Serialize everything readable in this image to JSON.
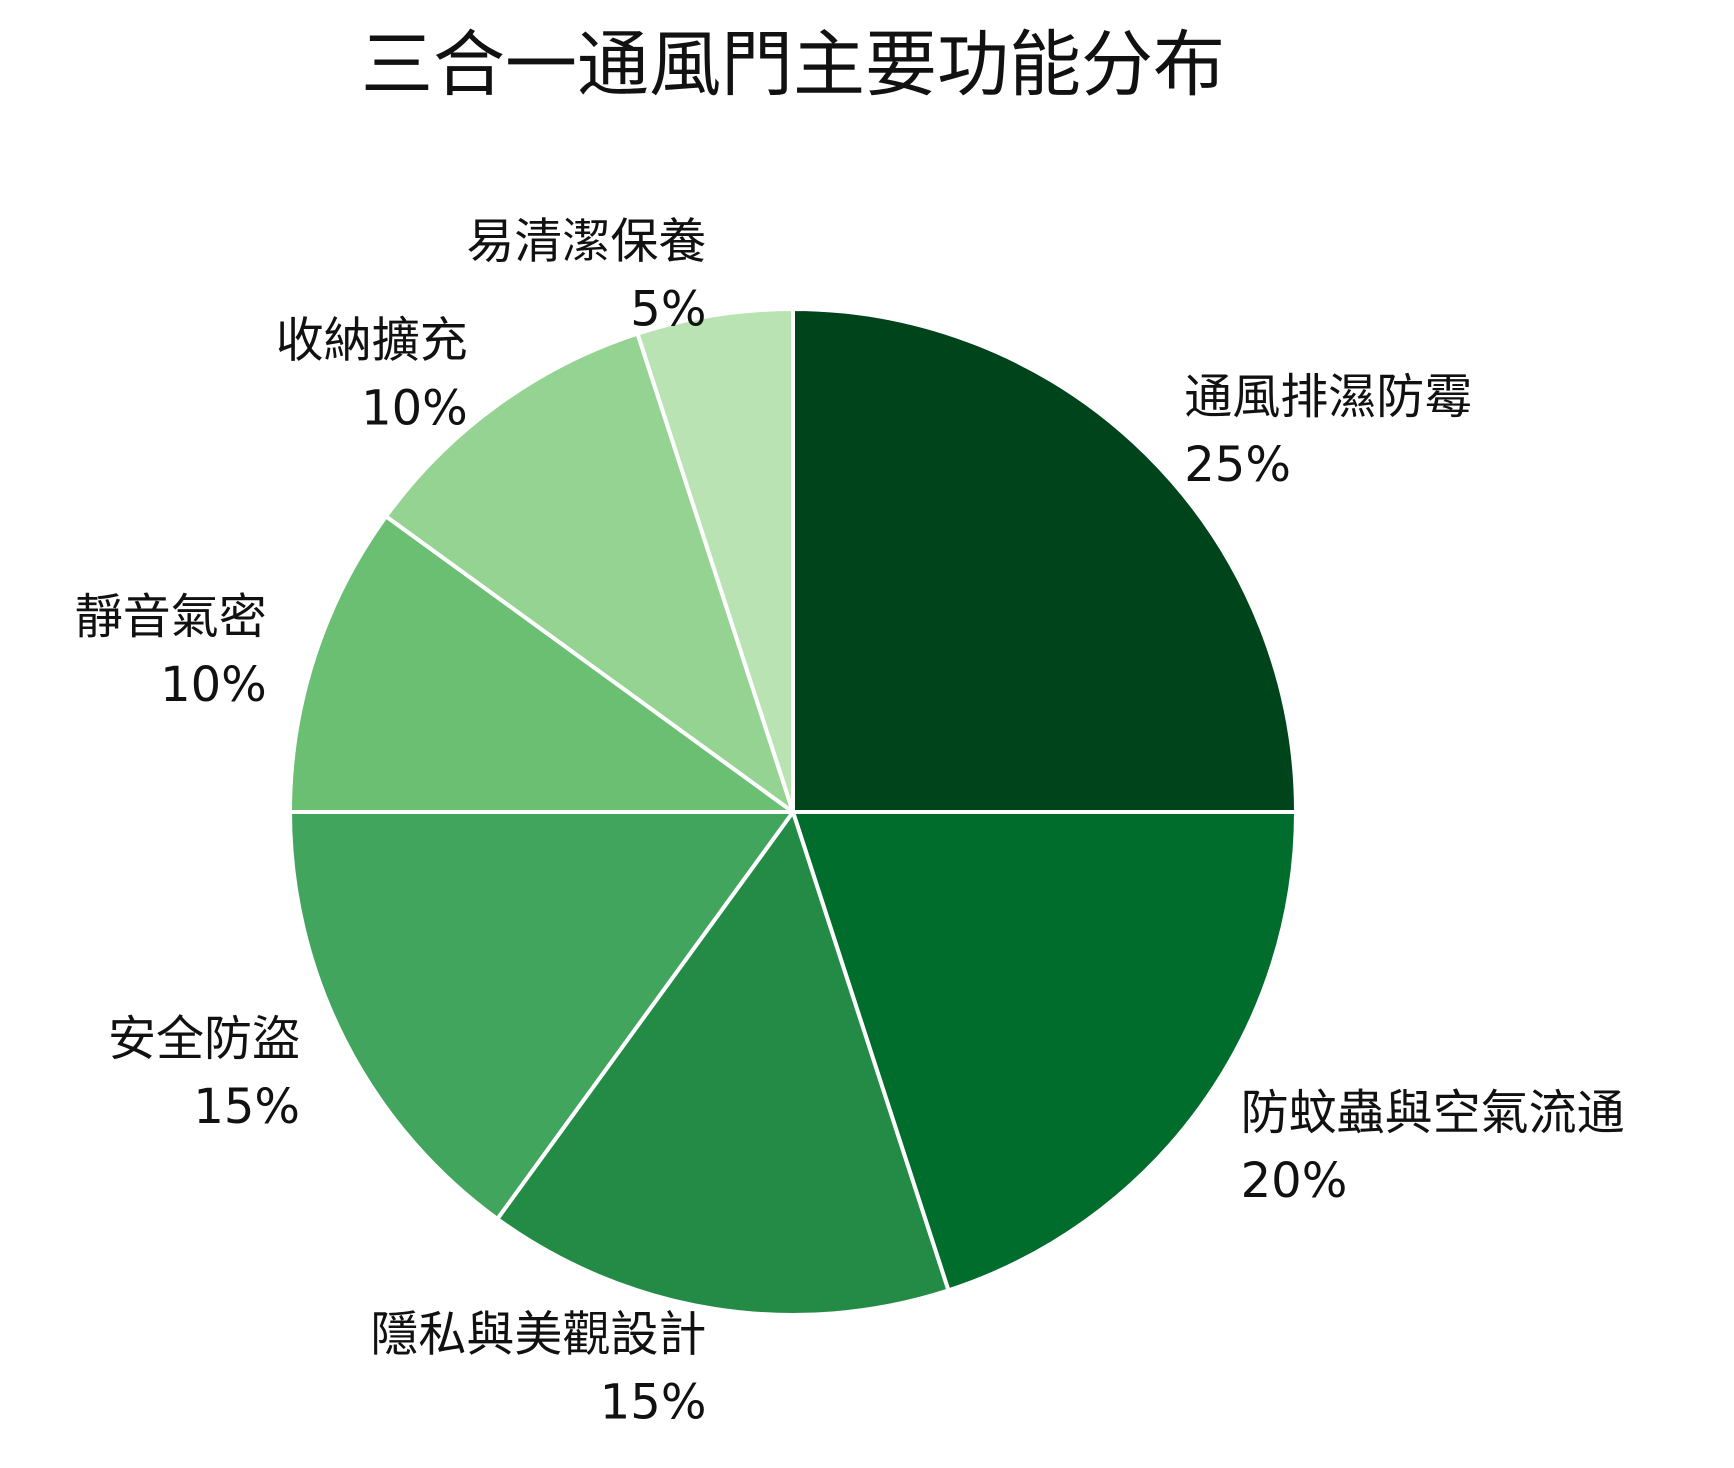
{
  "chart_data": {
    "type": "pie",
    "title": "三合一通風門主要功能分布",
    "categories": [
      "通風排濕防霉",
      "防蚊蟲與空氣流通",
      "隱私與美觀設計",
      "安全防盜",
      "靜音氣密",
      "收納擴充",
      "易清潔保養"
    ],
    "values": [
      25,
      20,
      15,
      15,
      10,
      10,
      5
    ],
    "value_labels": [
      "25%",
      "20%",
      "15%",
      "15%",
      "10%",
      "10%",
      "5%"
    ],
    "colors": [
      "#00441b",
      "#006d2c",
      "#238b45",
      "#41a55e",
      "#6bbf73",
      "#95d393",
      "#b9e3b2"
    ]
  }
}
